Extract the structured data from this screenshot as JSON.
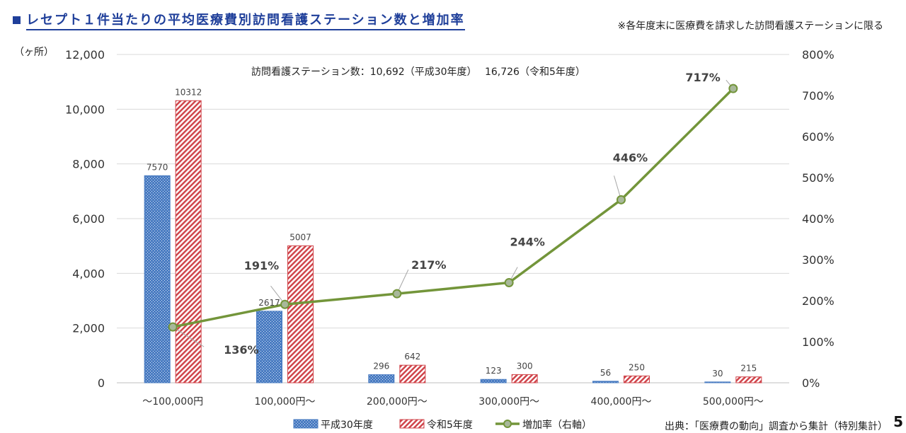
{
  "title": "レセプト１件当たりの平均医療費別訪問看護ステーション数と増加率",
  "note": "※各年度末に医療費を請求した訪問看護ステーションに限る",
  "source": "出典：「医療費の動向」調査から集計（特別集計）",
  "page_number": "5",
  "colors": {
    "title": "#1f3f9a",
    "h30": "#4a7cc2",
    "r5": "#d0454b",
    "line": "#73953a",
    "marker_fill": "#a8b89a",
    "grid": "#d9d9d9"
  },
  "chart_data": {
    "type": "bar",
    "unit_label": "（ヶ所）",
    "annotation": "訪問看護ステーション数：10,692（平成30年度）　 16,726（令和5年度）",
    "categories": [
      "～100,000円",
      "100,000円～",
      "200,000円～",
      "300,000円～",
      "400,000円～",
      "500,000円～"
    ],
    "series": [
      {
        "name": "平成30年度",
        "values": [
          7570,
          2617,
          296,
          123,
          56,
          30
        ],
        "value_labels": [
          "7570",
          "2617",
          "296",
          "123",
          "56",
          "30"
        ]
      },
      {
        "name": "令和5年度",
        "values": [
          10312,
          5007,
          642,
          300,
          250,
          215
        ],
        "value_labels": [
          "10312",
          "5007",
          "642",
          "300",
          "250",
          "215"
        ]
      }
    ],
    "line_series": {
      "name": "増加率（右軸）",
      "values": [
        136,
        191,
        217,
        244,
        446,
        717
      ],
      "value_labels": [
        "136%",
        "191%",
        "217%",
        "244%",
        "446%",
        "717%"
      ]
    },
    "ylim": [
      0,
      12000
    ],
    "y_ticks": [
      0,
      2000,
      4000,
      6000,
      8000,
      10000,
      12000
    ],
    "y_tick_labels": [
      "0",
      "2,000",
      "4,000",
      "6,000",
      "8,000",
      "10,000",
      "12,000"
    ],
    "y2lim": [
      0,
      800
    ],
    "y2_ticks": [
      0,
      100,
      200,
      300,
      400,
      500,
      600,
      700,
      800
    ],
    "y2_tick_labels": [
      "0%",
      "100%",
      "200%",
      "300%",
      "400%",
      "500%",
      "600%",
      "700%",
      "800%"
    ],
    "grid": true,
    "legend_position": "bottom"
  }
}
